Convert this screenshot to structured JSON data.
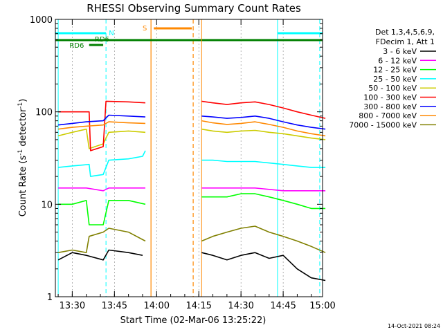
{
  "chart_data": {
    "type": "line",
    "title": "RHESSI Observing Summary Count Rates",
    "xlabel": "Start Time (02-Mar-06 13:25:22)",
    "ylabel_main": "Count Rate (s",
    "ylabel_sup1": "-1",
    "ylabel_mid": " detector",
    "ylabel_sup2": "-1",
    "ylabel_end": ")",
    "yscale": "log",
    "ylim": [
      1,
      1000
    ],
    "xlim_min": [
      -1,
      94
    ],
    "x_ticks_min": [
      5,
      20,
      35,
      50,
      65,
      80,
      95
    ],
    "x_tick_labels": [
      "13:30",
      "13:45",
      "14:00",
      "14:15",
      "14:30",
      "14:45",
      "15:00"
    ],
    "y_ticks": [
      1,
      10,
      100,
      1000
    ],
    "y_tick_labels": [
      "1",
      "10",
      "100",
      "1000"
    ],
    "legend_header": [
      "Det 1,3,4,5,6,9,",
      "FDecim 1, Att 1"
    ],
    "series": [
      {
        "name": "3 - 6 keV",
        "color": "#000000",
        "segments": [
          {
            "x": [
              0,
              5,
              10,
              16,
              18,
              25,
              30
            ],
            "y": [
              2.5,
              3.0,
              2.8,
              2.5,
              3.2,
              3.0,
              2.8
            ]
          },
          {
            "x": [
              51,
              55,
              60,
              65,
              70,
              75,
              80,
              85,
              90,
              95
            ],
            "y": [
              3.0,
              2.8,
              2.5,
              2.8,
              3.0,
              2.6,
              2.8,
              2.0,
              1.6,
              1.5
            ]
          }
        ]
      },
      {
        "name": "6 - 12 keV",
        "color": "#ff00ff",
        "segments": [
          {
            "x": [
              0,
              5,
              10,
              16,
              18,
              25,
              31
            ],
            "y": [
              15,
              15,
              15,
              14,
              15,
              15,
              15
            ]
          },
          {
            "x": [
              51,
              55,
              60,
              65,
              70,
              75,
              80,
              85,
              90,
              95
            ],
            "y": [
              15,
              15,
              15,
              15,
              15,
              14.5,
              14,
              14,
              14,
              14
            ]
          }
        ]
      },
      {
        "name": "12 - 25 keV",
        "color": "#00ff00",
        "segments": [
          {
            "x": [
              0,
              5,
              10,
              11,
              16,
              18,
              25,
              31
            ],
            "y": [
              10,
              10,
              11,
              6,
              6,
              11,
              11,
              10
            ]
          },
          {
            "x": [
              51,
              55,
              60,
              65,
              70,
              75,
              80,
              85,
              90,
              95
            ],
            "y": [
              12,
              12,
              12,
              13,
              13,
              12,
              11,
              10,
              9,
              9
            ]
          }
        ]
      },
      {
        "name": "25 - 50 keV",
        "color": "#00ffff",
        "segments": [
          {
            "x": [
              0,
              5,
              11,
              11.5,
              16,
              18,
              25,
              30,
              31
            ],
            "y": [
              25,
              26,
              27,
              20,
              21,
              30,
              31,
              33,
              38
            ]
          },
          {
            "x": [
              51,
              55,
              60,
              65,
              70,
              75,
              80,
              85,
              90,
              95
            ],
            "y": [
              30,
              30,
              29,
              29,
              29,
              28,
              27,
              26,
              25,
              25
            ]
          }
        ]
      },
      {
        "name": "50 - 100 keV",
        "color": "#cccc00",
        "segments": [
          {
            "x": [
              0,
              5,
              10,
              11,
              16,
              18,
              25,
              31
            ],
            "y": [
              55,
              60,
              65,
              40,
              45,
              60,
              62,
              60
            ]
          },
          {
            "x": [
              51,
              55,
              60,
              65,
              70,
              75,
              80,
              85,
              90,
              95
            ],
            "y": [
              65,
              62,
              60,
              62,
              63,
              60,
              58,
              55,
              52,
              50
            ]
          }
        ]
      },
      {
        "name": "100 - 300 keV",
        "color": "#ff0000",
        "segments": [
          {
            "x": [
              0,
              5,
              11,
              11.5,
              16,
              17,
              25,
              31
            ],
            "y": [
              100,
              100,
              100,
              38,
              42,
              130,
              128,
              125
            ]
          },
          {
            "x": [
              51,
              55,
              60,
              65,
              70,
              75,
              80,
              85,
              90,
              95
            ],
            "y": [
              130,
              125,
              120,
              125,
              128,
              120,
              110,
              100,
              92,
              85
            ]
          }
        ]
      },
      {
        "name": "300 - 800 keV",
        "color": "#0000ff",
        "segments": [
          {
            "x": [
              0,
              5,
              10,
              16,
              18,
              25,
              31
            ],
            "y": [
              72,
              75,
              78,
              80,
              92,
              90,
              88
            ]
          },
          {
            "x": [
              51,
              55,
              60,
              65,
              70,
              75,
              80,
              85,
              90,
              95
            ],
            "y": [
              90,
              88,
              85,
              87,
              90,
              85,
              78,
              72,
              68,
              65
            ]
          }
        ]
      },
      {
        "name": "800 - 7000 keV",
        "color": "#ff8800",
        "segments": [
          {
            "x": [
              0,
              5,
              10,
              16,
              18,
              25,
              31
            ],
            "y": [
              65,
              68,
              70,
              72,
              78,
              76,
              75
            ]
          },
          {
            "x": [
              51,
              55,
              60,
              65,
              70,
              75,
              80,
              85,
              90,
              95
            ],
            "y": [
              80,
              76,
              73,
              75,
              78,
              73,
              68,
              62,
              58,
              55
            ]
          }
        ]
      },
      {
        "name": "7000 - 15000 keV",
        "color": "#808000",
        "segments": [
          {
            "x": [
              0,
              5,
              10,
              11,
              16,
              18,
              25,
              31
            ],
            "y": [
              3.0,
              3.2,
              3.0,
              4.5,
              5.0,
              5.5,
              5.0,
              4.0
            ]
          },
          {
            "x": [
              51,
              55,
              60,
              65,
              70,
              75,
              80,
              85,
              90,
              95
            ],
            "y": [
              4.0,
              4.5,
              5.0,
              5.5,
              5.8,
              5.0,
              4.5,
              4.0,
              3.5,
              3.0
            ]
          }
        ]
      }
    ],
    "annotations": {
      "night_label": "N",
      "saa_label": "S",
      "rd6_label": "RD6",
      "rd6_label2": "RD6",
      "timestamp": "14-Oct-2021 08:24",
      "colors": {
        "night": "#00ffff",
        "saa": "#ff8800",
        "rd6": "#008000",
        "grid": "#808080"
      }
    }
  }
}
